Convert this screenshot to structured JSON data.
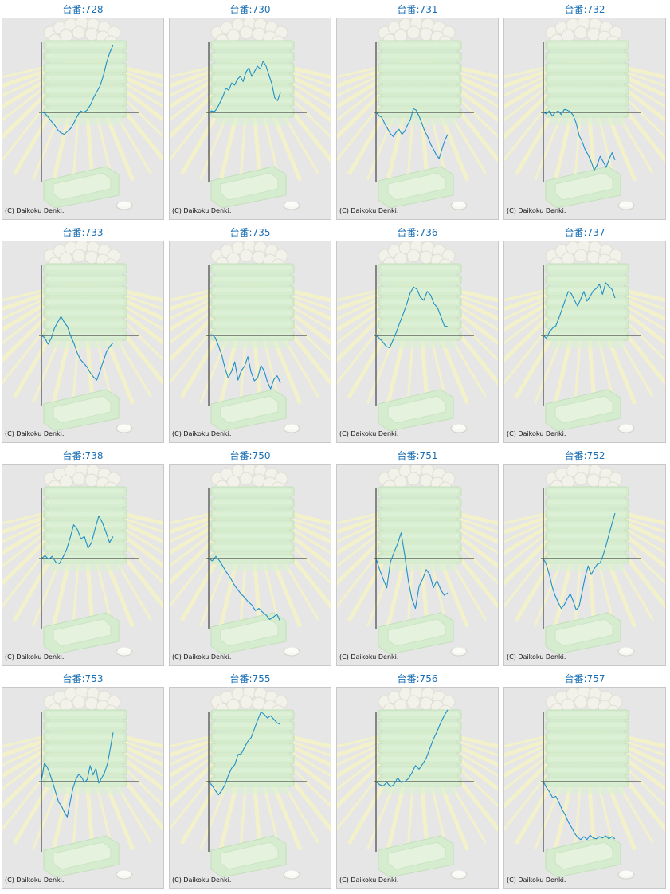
{
  "page": {
    "background": "#ffffff",
    "title_color": "#1a6fb4",
    "line_color": "#1f8fc7",
    "panel_bg": "#e6e6e6",
    "credit": "(C) Daikoku Denki."
  },
  "chart_data": [
    {
      "type": "line",
      "title": "台番:728",
      "y": [
        0,
        -1,
        -6,
        -12,
        -17,
        -24,
        -28,
        -30,
        -26,
        -22,
        -14,
        -5,
        2,
        0,
        3,
        10,
        20,
        28,
        36,
        50,
        68,
        82,
        92
      ]
    },
    {
      "type": "line",
      "title": "台番:730",
      "y": [
        0,
        2,
        1,
        6,
        14,
        22,
        33,
        30,
        40,
        37,
        45,
        49,
        42,
        55,
        61,
        49,
        56,
        63,
        59,
        70,
        63,
        51,
        39,
        20,
        16,
        27
      ]
    },
    {
      "type": "line",
      "title": "台番:731",
      "y": [
        0,
        -4,
        -7,
        -15,
        -22,
        -29,
        -33,
        -27,
        -23,
        -30,
        -26,
        -17,
        -10,
        5,
        3,
        -5,
        -15,
        -26,
        -33,
        -43,
        -50,
        -58,
        -63,
        -50,
        -38,
        -30
      ]
    },
    {
      "type": "line",
      "title": "台番:732",
      "y": [
        0,
        -2,
        2,
        -5,
        0,
        2,
        -3,
        4,
        3,
        1,
        -4,
        -15,
        -32,
        -40,
        -51,
        -58,
        -67,
        -79,
        -72,
        -60,
        -67,
        -75,
        -64,
        -55,
        -65
      ]
    },
    {
      "type": "line",
      "title": "台番:733",
      "y": [
        0,
        -3,
        -12,
        -4,
        10,
        18,
        26,
        18,
        12,
        -1,
        -11,
        -24,
        -33,
        -38,
        -43,
        -51,
        -57,
        -61,
        -48,
        -35,
        -22,
        -15,
        -10
      ]
    },
    {
      "type": "line",
      "title": "台番:735",
      "y": [
        0,
        1,
        -3,
        -14,
        -27,
        -45,
        -58,
        -49,
        -36,
        -61,
        -48,
        -42,
        -29,
        -50,
        -62,
        -58,
        -41,
        -48,
        -63,
        -73,
        -60,
        -55,
        -65
      ]
    },
    {
      "type": "line",
      "title": "台番:736",
      "y": [
        0,
        -4,
        -9,
        -15,
        -17,
        -6,
        5,
        18,
        30,
        43,
        58,
        66,
        63,
        52,
        48,
        60,
        55,
        43,
        38,
        26,
        13,
        12
      ]
    },
    {
      "type": "line",
      "title": "台番:737",
      "y": [
        0,
        -4,
        5,
        10,
        13,
        24,
        36,
        48,
        60,
        57,
        48,
        40,
        50,
        60,
        47,
        53,
        61,
        64,
        70,
        56,
        72,
        67,
        63,
        51
      ]
    },
    {
      "type": "line",
      "title": "台番:738",
      "y": [
        0,
        4,
        -1,
        3,
        -5,
        -7,
        2,
        12,
        28,
        46,
        40,
        27,
        30,
        14,
        22,
        41,
        58,
        49,
        36,
        22,
        30
      ]
    },
    {
      "type": "line",
      "title": "台番:750",
      "y": [
        0,
        -3,
        3,
        -3,
        -11,
        -19,
        -26,
        -35,
        -42,
        -48,
        -53,
        -59,
        -63,
        -71,
        -68,
        -73,
        -77,
        -83,
        -80,
        -76,
        -86
      ]
    },
    {
      "type": "line",
      "title": "台番:751",
      "y": [
        0,
        -15,
        -28,
        -40,
        -5,
        8,
        20,
        35,
        5,
        -30,
        -55,
        -68,
        -38,
        -28,
        -15,
        -22,
        -40,
        -30,
        -42,
        -50,
        -47
      ]
    },
    {
      "type": "line",
      "title": "台番:752",
      "y": [
        0,
        -8,
        -22,
        -39,
        -51,
        -60,
        -68,
        -63,
        -55,
        -48,
        -58,
        -70,
        -65,
        -45,
        -25,
        -10,
        -22,
        -14,
        -8,
        -6,
        4,
        18,
        33,
        48,
        62
      ]
    },
    {
      "type": "line",
      "title": "台番:753",
      "y": [
        0,
        25,
        20,
        10,
        -2,
        -15,
        -28,
        -33,
        -42,
        -48,
        -28,
        -9,
        3,
        10,
        6,
        -1,
        3,
        22,
        9,
        18,
        -2,
        5,
        12,
        24,
        45,
        67
      ]
    },
    {
      "type": "line",
      "title": "台番:755",
      "y": [
        0,
        -5,
        -12,
        -18,
        -12,
        -4,
        8,
        18,
        23,
        37,
        38,
        47,
        55,
        60,
        72,
        84,
        95,
        92,
        87,
        90,
        85,
        80,
        78
      ]
    },
    {
      "type": "line",
      "title": "台番:756",
      "y": [
        0,
        -4,
        -6,
        -1,
        -7,
        -4,
        5,
        -1,
        0,
        4,
        12,
        22,
        17,
        24,
        32,
        45,
        58,
        68,
        80,
        90,
        98
      ]
    },
    {
      "type": "line",
      "title": "台番:757",
      "y": [
        0,
        -8,
        -14,
        -22,
        -20,
        -28,
        -38,
        -45,
        -55,
        -62,
        -70,
        -76,
        -79,
        -75,
        -79,
        -73,
        -77,
        -78,
        -75,
        -77,
        -74,
        -78,
        -75,
        -78
      ]
    }
  ]
}
